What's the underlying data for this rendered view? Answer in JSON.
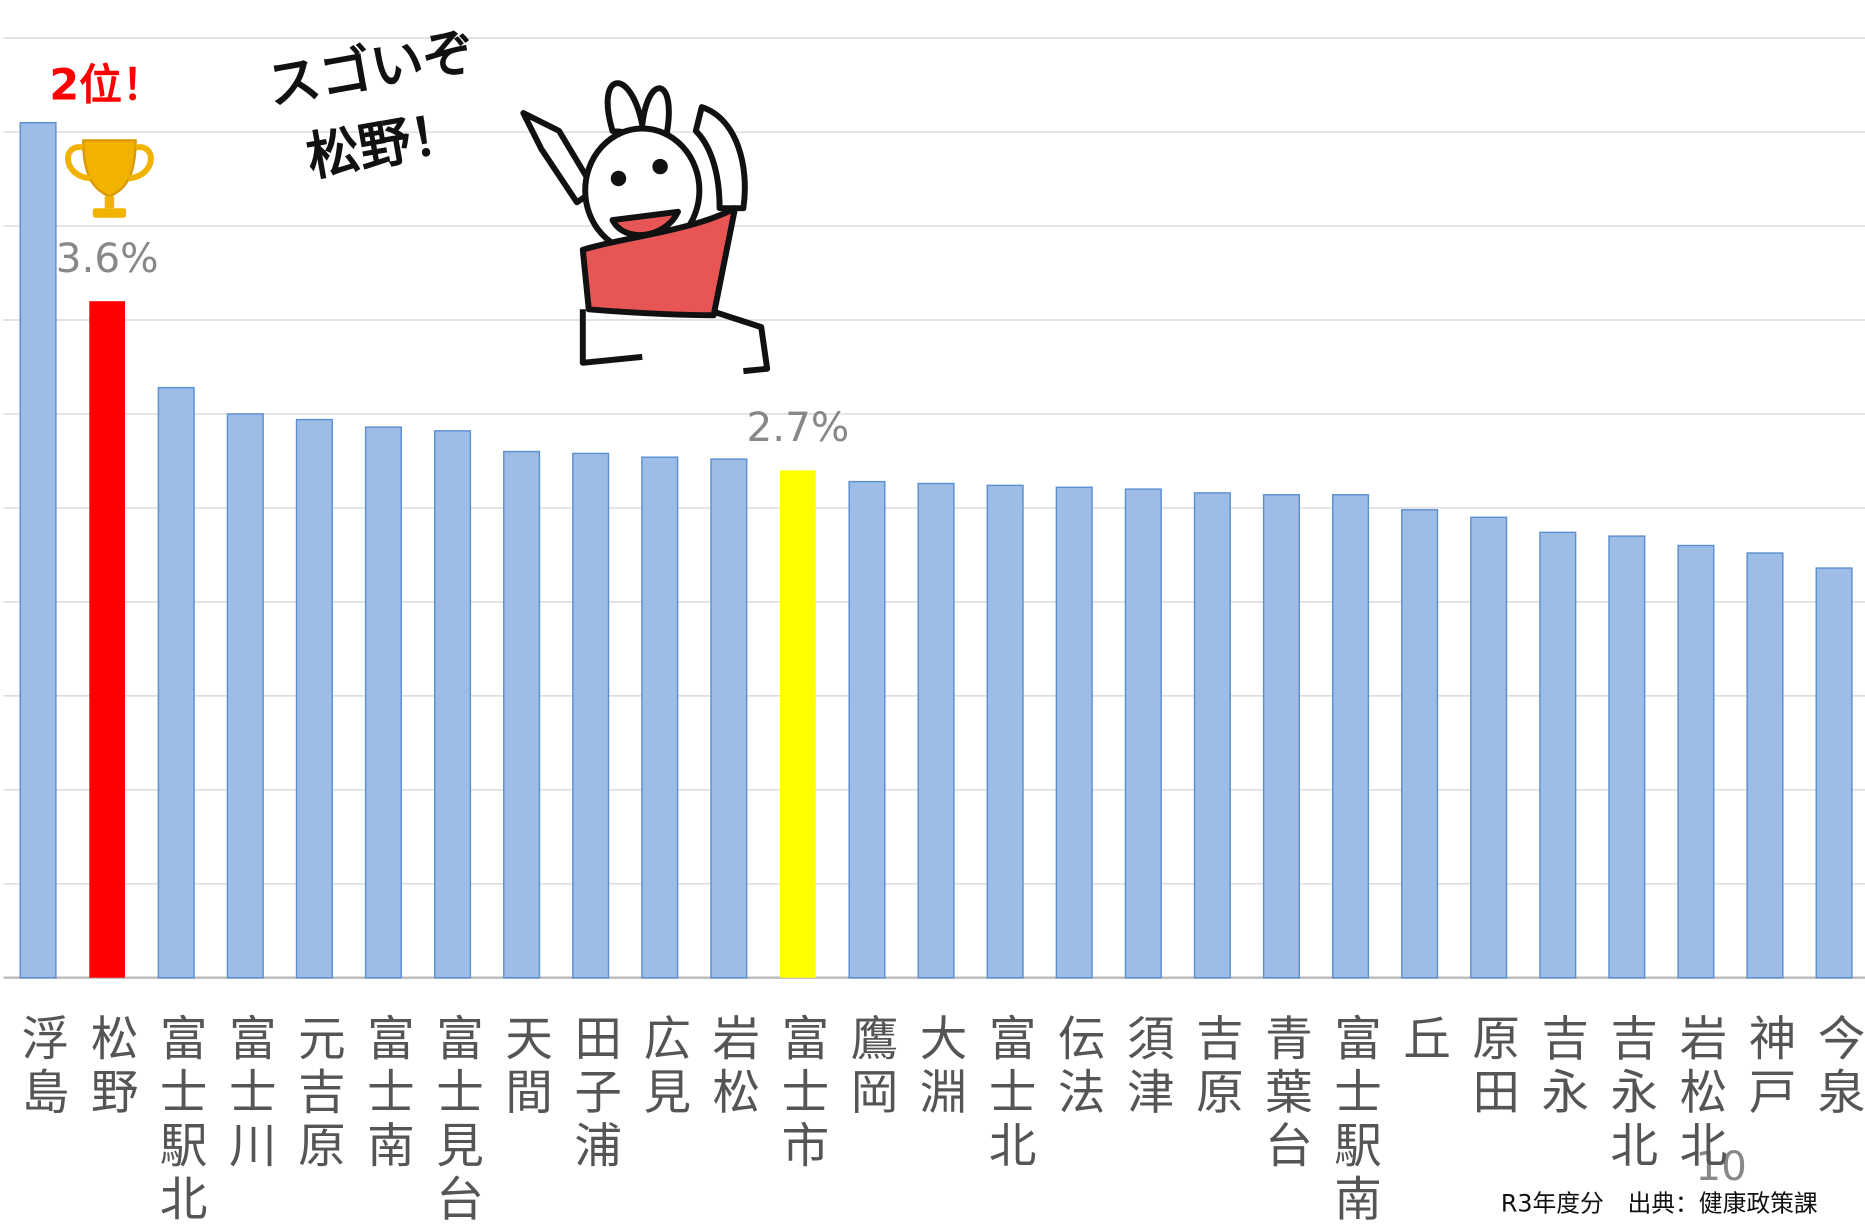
{
  "chart_data": {
    "type": "bar",
    "categories": [
      "浮島",
      "松野",
      "富士駅北",
      "富士川",
      "元吉原",
      "富士南",
      "富士見台",
      "天間",
      "田子浦",
      "広見",
      "岩松",
      "富士市",
      "鷹岡",
      "大淵",
      "富士北",
      "伝法",
      "須津",
      "吉原",
      "青葉台",
      "富士駅南",
      "丘",
      "原田",
      "吉永",
      "吉永北",
      "岩松北",
      "神戸",
      "今泉"
    ],
    "values": [
      4.55,
      3.6,
      3.14,
      3.0,
      2.97,
      2.93,
      2.91,
      2.8,
      2.79,
      2.77,
      2.76,
      2.7,
      2.64,
      2.63,
      2.62,
      2.61,
      2.6,
      2.58,
      2.57,
      2.57,
      2.49,
      2.45,
      2.37,
      2.35,
      2.3,
      2.26,
      2.18
    ],
    "value_labels": [
      null,
      "3.6%",
      null,
      null,
      null,
      null,
      null,
      null,
      null,
      null,
      null,
      "2.7%",
      null,
      null,
      null,
      null,
      null,
      null,
      null,
      null,
      null,
      null,
      null,
      null,
      null,
      null,
      null
    ],
    "colors": [
      "#9dbde6",
      "#ff0000",
      "#9dbde6",
      "#9dbde6",
      "#9dbde6",
      "#9dbde6",
      "#9dbde6",
      "#9dbde6",
      "#9dbde6",
      "#9dbde6",
      "#9dbde6",
      "#ffff00",
      "#9dbde6",
      "#9dbde6",
      "#9dbde6",
      "#9dbde6",
      "#9dbde6",
      "#9dbde6",
      "#9dbde6",
      "#9dbde6",
      "#9dbde6",
      "#9dbde6",
      "#9dbde6",
      "#9dbde6",
      "#9dbde6",
      "#9dbde6",
      "#9dbde6"
    ],
    "ylim": [
      0,
      5
    ],
    "yticks": [
      0,
      0.5,
      1,
      1.5,
      2,
      2.5,
      3,
      3.5,
      4,
      4.5,
      5
    ],
    "grid": true,
    "annotations": {
      "rank": "2位！",
      "cheer_line1": "スゴいぞ",
      "cheer_line2": "松野！",
      "source": "R3年度分　出典：健康政策課",
      "page_number": "10"
    }
  }
}
